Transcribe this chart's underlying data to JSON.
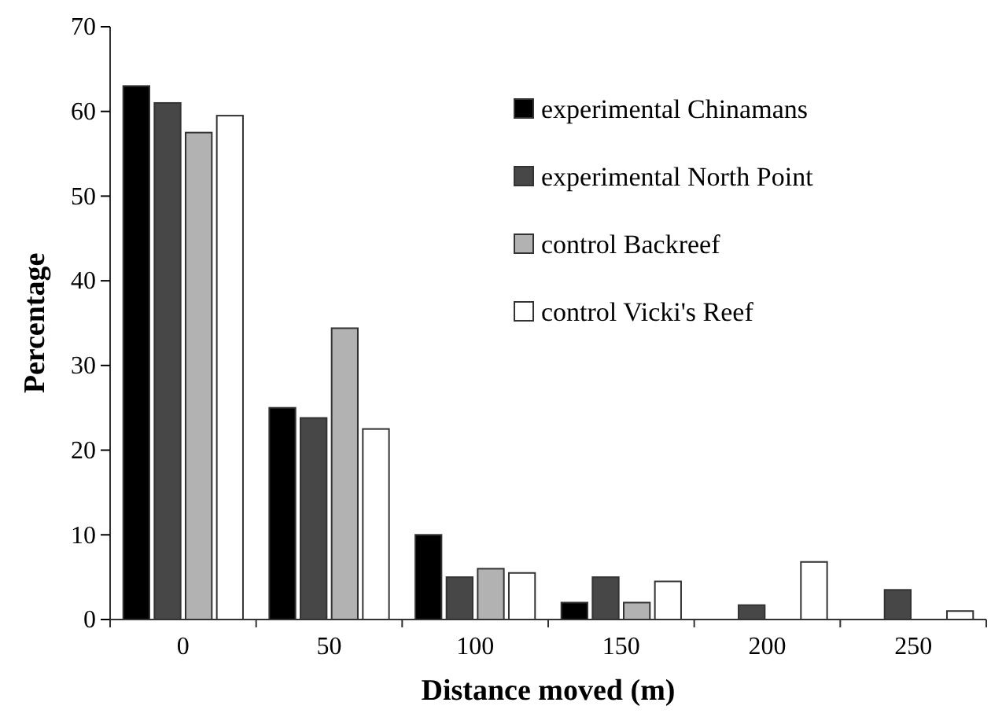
{
  "chart_data": {
    "type": "bar",
    "xlabel": "Distance moved (m)",
    "ylabel": "Percentage",
    "categories": [
      "0",
      "50",
      "100",
      "150",
      "200",
      "250"
    ],
    "series": [
      {
        "name": "experimental Chinamans",
        "color": "#000000",
        "values": [
          63,
          25,
          10,
          2,
          0,
          0
        ]
      },
      {
        "name": "experimental North Point",
        "color": "#474747",
        "values": [
          61,
          23.8,
          5,
          5,
          1.7,
          3.5
        ]
      },
      {
        "name": "control Backreef",
        "color": "#b2b2b2",
        "values": [
          57.5,
          34.4,
          6,
          2,
          0,
          0
        ]
      },
      {
        "name": "control Vicki's Reef",
        "color": "#ffffff",
        "values": [
          59.5,
          22.5,
          5.5,
          4.5,
          6.8,
          1
        ]
      }
    ],
    "ylim": [
      0,
      70
    ],
    "yticks": [
      0,
      10,
      20,
      30,
      40,
      50,
      60,
      70
    ],
    "grid": false,
    "legend": "top right"
  }
}
